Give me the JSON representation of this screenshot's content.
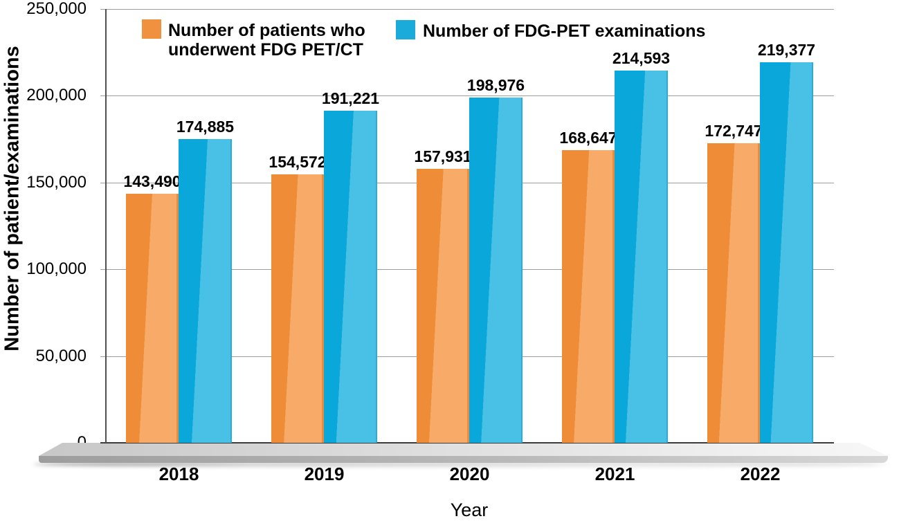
{
  "chart_data": {
    "type": "bar",
    "title": "",
    "categories": [
      "2018",
      "2019",
      "2020",
      "2021",
      "2022"
    ],
    "series": [
      {
        "name": "Number of patients who underwent FDG PET/CT",
        "legend_lines": [
          "Number of patients who",
          "underwent FDG PET/CT"
        ],
        "color": "#F0913F",
        "color_dark": "#EF8C38",
        "color_light": "#F8AA68",
        "values": [
          143490,
          154572,
          157931,
          168647,
          172747
        ],
        "value_labels": [
          "143,490",
          "154,572",
          "157,931",
          "168,647",
          "172,747"
        ]
      },
      {
        "name": "Number of FDG-PET examinations",
        "legend_lines": [
          "Number of FDG-PET examinations"
        ],
        "color": "#1BABDB",
        "color_dark": "#09A7DA",
        "color_light": "#49C0E6",
        "values": [
          174885,
          191221,
          198976,
          214593,
          219377
        ],
        "value_labels": [
          "174,885",
          "191,221",
          "198,976",
          "214,593",
          "219,377"
        ]
      }
    ],
    "xlabel": "Year",
    "ylabel": "Number of patient/examinations",
    "ylim": [
      0,
      250000
    ],
    "ytick_step": 50000,
    "yticks": [
      {
        "value": 0,
        "label": "0"
      },
      {
        "value": 50000,
        "label": "50,000"
      },
      {
        "value": 100000,
        "label": "100,000"
      },
      {
        "value": 150000,
        "label": "150,000"
      },
      {
        "value": 200000,
        "label": "200,000"
      },
      {
        "value": 250000,
        "label": "250,000"
      }
    ],
    "grid": true,
    "legend_position": "top",
    "bar_label_position": "above"
  },
  "colors": {
    "gridline": "#9c9c9c",
    "axis": "#4f4f4f",
    "platform_light": "#e0e0e0",
    "platform_dark": "#a5a5a5",
    "text": "#000000"
  }
}
